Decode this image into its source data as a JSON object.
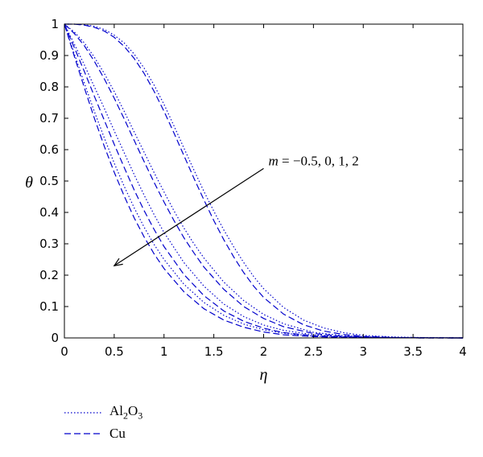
{
  "chart_data": {
    "type": "line",
    "xlabel": "η",
    "ylabel": "θ",
    "xlim": [
      0,
      4
    ],
    "ylim": [
      0,
      1
    ],
    "xticks": [
      "0",
      "0.5",
      "1",
      "1.5",
      "2",
      "2.5",
      "3",
      "3.5",
      "4"
    ],
    "yticks": [
      "0",
      "0.1",
      "0.2",
      "0.3",
      "0.4",
      "0.5",
      "0.6",
      "0.7",
      "0.8",
      "0.9",
      "1"
    ],
    "grid": false,
    "legend_position": "bottom-left",
    "line_color": "#0000cc",
    "annotation": {
      "var": "m",
      "values": " = −0.5, 0, 1, 2",
      "arrow_from": [
        2.0,
        0.54
      ],
      "arrow_to": [
        0.5,
        0.23
      ]
    },
    "legend": [
      {
        "label_main": "Al",
        "sub1": "2",
        "mid": "O",
        "sub2": "3",
        "style": "dotted"
      },
      {
        "label": "Cu",
        "style": "dashed"
      }
    ],
    "series": [
      {
        "style": "dotted",
        "m": -0.5,
        "x": [
          0,
          0.1,
          0.2,
          0.3,
          0.4,
          0.5,
          0.6,
          0.7,
          0.8,
          0.9,
          1.0,
          1.2,
          1.4,
          1.6,
          1.8,
          2.0,
          2.2,
          2.5,
          2.8,
          3.2,
          3.6,
          4.0
        ],
        "y": [
          1,
          0.905,
          0.812,
          0.722,
          0.638,
          0.557,
          0.483,
          0.415,
          0.353,
          0.298,
          0.25,
          0.171,
          0.113,
          0.072,
          0.044,
          0.026,
          0.015,
          0.006,
          0.002,
          0.0005,
          0.0001,
          0
        ]
      },
      {
        "style": "dashed",
        "m": -0.5,
        "x": [
          0,
          0.1,
          0.2,
          0.3,
          0.4,
          0.5,
          0.6,
          0.7,
          0.8,
          0.9,
          1.0,
          1.2,
          1.4,
          1.6,
          1.8,
          2.0,
          2.2,
          2.5,
          2.8,
          3.2,
          3.6,
          4.0
        ],
        "y": [
          1,
          0.897,
          0.797,
          0.701,
          0.611,
          0.528,
          0.452,
          0.383,
          0.322,
          0.268,
          0.221,
          0.147,
          0.093,
          0.057,
          0.034,
          0.019,
          0.01,
          0.004,
          0.0015,
          0.0004,
          0.0001,
          0
        ]
      },
      {
        "style": "dotted",
        "m": 0,
        "x": [
          0,
          0.1,
          0.2,
          0.3,
          0.4,
          0.5,
          0.6,
          0.7,
          0.8,
          0.9,
          1.0,
          1.2,
          1.4,
          1.6,
          1.8,
          2.0,
          2.2,
          2.5,
          2.8,
          3.2,
          3.6,
          4.0
        ],
        "y": [
          1,
          0.936,
          0.87,
          0.801,
          0.732,
          0.66,
          0.59,
          0.521,
          0.455,
          0.393,
          0.336,
          0.24,
          0.165,
          0.108,
          0.068,
          0.041,
          0.024,
          0.01,
          0.004,
          0.001,
          0.0002,
          0
        ]
      },
      {
        "style": "dashed",
        "m": 0,
        "x": [
          0,
          0.1,
          0.2,
          0.3,
          0.4,
          0.5,
          0.6,
          0.7,
          0.8,
          0.9,
          1.0,
          1.2,
          1.4,
          1.6,
          1.8,
          2.0,
          2.2,
          2.5,
          2.8,
          3.2,
          3.6,
          4.0
        ],
        "y": [
          1,
          0.925,
          0.849,
          0.771,
          0.694,
          0.617,
          0.543,
          0.472,
          0.406,
          0.346,
          0.291,
          0.202,
          0.135,
          0.086,
          0.053,
          0.031,
          0.017,
          0.007,
          0.0025,
          0.0006,
          0.0001,
          0
        ]
      },
      {
        "style": "dotted",
        "m": 1,
        "x": [
          0,
          0.1,
          0.2,
          0.3,
          0.4,
          0.5,
          0.6,
          0.7,
          0.8,
          0.9,
          1.0,
          1.1,
          1.2,
          1.3,
          1.4,
          1.6,
          1.8,
          2.0,
          2.2,
          2.5,
          2.8,
          3.2,
          3.6,
          4.0
        ],
        "y": [
          1,
          0.975,
          0.94,
          0.895,
          0.843,
          0.785,
          0.722,
          0.657,
          0.592,
          0.527,
          0.465,
          0.405,
          0.35,
          0.3,
          0.255,
          0.178,
          0.119,
          0.075,
          0.045,
          0.018,
          0.007,
          0.0015,
          0.0003,
          0
        ]
      },
      {
        "style": "dashed",
        "m": 1,
        "x": [
          0,
          0.1,
          0.2,
          0.3,
          0.4,
          0.5,
          0.6,
          0.7,
          0.8,
          0.9,
          1.0,
          1.1,
          1.2,
          1.3,
          1.4,
          1.6,
          1.8,
          2.0,
          2.2,
          2.5,
          2.8,
          3.2,
          3.6,
          4.0
        ],
        "y": [
          1,
          0.97,
          0.931,
          0.882,
          0.826,
          0.764,
          0.698,
          0.63,
          0.562,
          0.496,
          0.433,
          0.374,
          0.319,
          0.271,
          0.226,
          0.155,
          0.1,
          0.062,
          0.036,
          0.014,
          0.005,
          0.001,
          0.0002,
          0
        ]
      },
      {
        "style": "dotted",
        "m": 2,
        "x": [
          0,
          0.1,
          0.2,
          0.3,
          0.4,
          0.5,
          0.6,
          0.7,
          0.8,
          0.9,
          1.0,
          1.1,
          1.2,
          1.3,
          1.4,
          1.5,
          1.6,
          1.7,
          1.8,
          1.9,
          2.0,
          2.2,
          2.4,
          2.6,
          2.8,
          3.0,
          3.3,
          3.6,
          4.0
        ],
        "y": [
          1,
          1.0,
          0.998,
          0.993,
          0.983,
          0.965,
          0.94,
          0.905,
          0.86,
          0.806,
          0.744,
          0.676,
          0.605,
          0.535,
          0.467,
          0.404,
          0.344,
          0.29,
          0.24,
          0.196,
          0.157,
          0.097,
          0.057,
          0.032,
          0.017,
          0.008,
          0.003,
          0.001,
          0
        ]
      },
      {
        "style": "dashed",
        "m": 2,
        "x": [
          0,
          0.1,
          0.2,
          0.3,
          0.4,
          0.5,
          0.6,
          0.7,
          0.8,
          0.9,
          1.0,
          1.1,
          1.2,
          1.3,
          1.4,
          1.5,
          1.6,
          1.7,
          1.8,
          1.9,
          2.0,
          2.2,
          2.4,
          2.6,
          2.8,
          3.0,
          3.3,
          3.6,
          4.0
        ],
        "y": [
          1,
          1.0,
          0.997,
          0.99,
          0.978,
          0.958,
          0.929,
          0.891,
          0.843,
          0.786,
          0.722,
          0.653,
          0.581,
          0.509,
          0.44,
          0.374,
          0.313,
          0.258,
          0.208,
          0.165,
          0.129,
          0.076,
          0.042,
          0.022,
          0.011,
          0.005,
          0.0015,
          0.0004,
          0
        ]
      }
    ]
  }
}
